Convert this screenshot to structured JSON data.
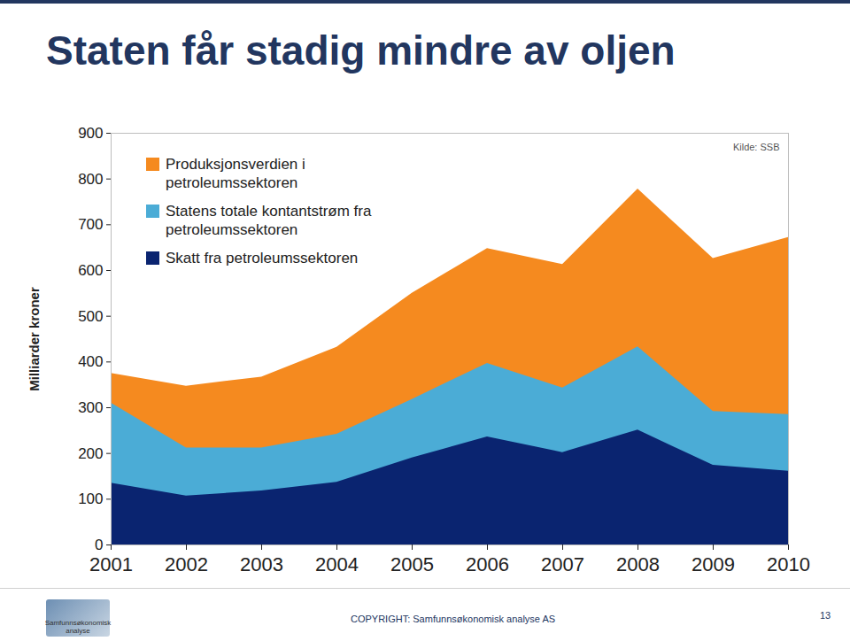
{
  "chart_data": {
    "type": "area",
    "title": "Staten får stadig mindre av oljen",
    "y_label": "Milliarder kroner",
    "source": "Kilde: SSB",
    "footer": "COPYRIGHT: Samfunnsøkonomisk analyse AS",
    "logo_text": "Samfunnsøkonomisk analyse",
    "page_number": "13",
    "x": [
      2001,
      2002,
      2003,
      2004,
      2005,
      2006,
      2007,
      2008,
      2009,
      2010
    ],
    "xlim": [
      2001,
      2010
    ],
    "xticks": [
      2001,
      2002,
      2003,
      2004,
      2005,
      2006,
      2007,
      2008,
      2009,
      2010
    ],
    "ylim": [
      0,
      900
    ],
    "yticks": [
      0,
      100,
      200,
      300,
      400,
      500,
      600,
      700,
      800,
      900
    ],
    "stacked": false,
    "grid": false,
    "legend": "top-left",
    "series": [
      {
        "name": "Produksjonsverdien i petroleumssektoren",
        "color": "#F58A1F",
        "values": [
          375,
          347,
          367,
          432,
          550,
          648,
          613,
          778,
          626,
          672
        ]
      },
      {
        "name": "Statens totale kontantstrøm fra petroleumssektoren",
        "color": "#4BACD6",
        "values": [
          310,
          212,
          212,
          242,
          318,
          397,
          343,
          433,
          292,
          285
        ]
      },
      {
        "name": "Skatt fra petroleumssektoren",
        "color": "#0A2470",
        "values": [
          135,
          107,
          118,
          137,
          190,
          236,
          202,
          251,
          174,
          161
        ]
      }
    ]
  }
}
